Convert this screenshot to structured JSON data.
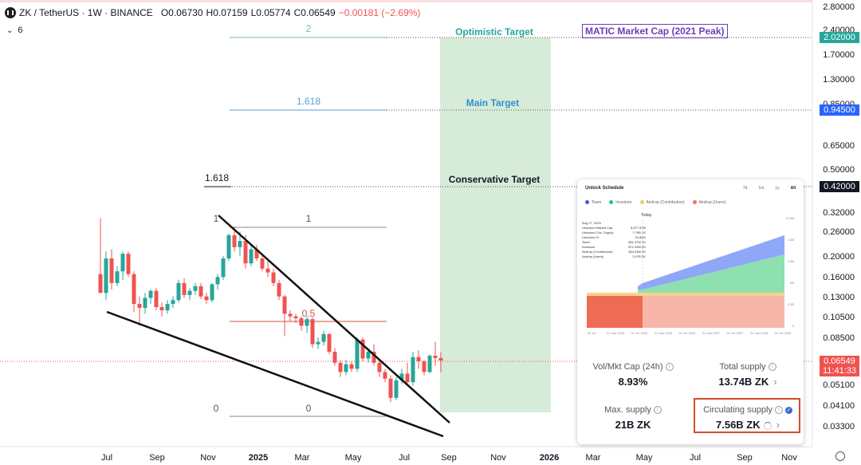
{
  "header": {
    "symbol": "ZK / TetherUS · 1W · BINANCE",
    "open": "O0.06730",
    "high": "H0.07159",
    "low": "L0.05774",
    "close": "C0.06549",
    "change": "−0.00181 (−2.69%)",
    "indicators_count": "6"
  },
  "y_axis": {
    "scale": "log",
    "ticks": [
      "2.80000",
      "2.40000",
      "1.70000",
      "1.30000",
      "0.85000",
      "0.65000",
      "0.50000",
      "0.32000",
      "0.26000",
      "0.20000",
      "0.16000",
      "0.13000",
      "0.10500",
      "0.08500",
      "0.05100",
      "0.04100",
      "0.03300"
    ],
    "price_tags": [
      {
        "label": "2.02000",
        "color": "#26a69a"
      },
      {
        "label": "0.94500",
        "color": "#2962ff"
      },
      {
        "label": "0.42000",
        "color": "#131722"
      },
      {
        "label": "0.06549",
        "color": "#ef5350"
      },
      {
        "label": "11:41:33",
        "color": "#ef5350"
      }
    ]
  },
  "x_axis": {
    "ticks": [
      {
        "label": "Jul",
        "bold": false
      },
      {
        "label": "Sep",
        "bold": false
      },
      {
        "label": "Nov",
        "bold": false
      },
      {
        "label": "2025",
        "bold": true
      },
      {
        "label": "Mar",
        "bold": false
      },
      {
        "label": "May",
        "bold": false
      },
      {
        "label": "Jul",
        "bold": false
      },
      {
        "label": "Sep",
        "bold": false
      },
      {
        "label": "Nov",
        "bold": false
      },
      {
        "label": "2026",
        "bold": true
      },
      {
        "label": "Mar",
        "bold": false
      },
      {
        "label": "May",
        "bold": false
      },
      {
        "label": "Jul",
        "bold": false
      },
      {
        "label": "Sep",
        "bold": false
      },
      {
        "label": "Nov",
        "bold": false
      }
    ]
  },
  "annotations": {
    "optimistic": "Optimistic Target",
    "main": "Main Target",
    "conservative": "Conservative Target",
    "matic": "MATIC Market Cap (2021 Peak)",
    "fib_upper_2": "2",
    "fib_upper_1618": "1.618",
    "fib_cons_1618": "1.618",
    "fib_lower_1_left": "1",
    "fib_lower_1": "1",
    "fib_lower_05": "0.5",
    "fib_lower_0_left": "0",
    "fib_lower_0": "0"
  },
  "colors": {
    "up": "#26a69a",
    "down": "#ef5350",
    "target_zone": "#c8e6c9",
    "optimistic_text": "#26a69a",
    "main_text": "#2f8fd1",
    "matic_text": "#6a3fb5"
  },
  "chart_data": {
    "type": "candlestick",
    "title": "ZK / TetherUS · 1W · BINANCE",
    "ylim": [
      0.03,
      3.0
    ],
    "yscale": "log",
    "series": [
      {
        "date": "2024-06-17",
        "o": 0.165,
        "h": 0.3,
        "l": 0.135,
        "c": 0.135
      },
      {
        "date": "2024-06-24",
        "o": 0.135,
        "h": 0.21,
        "l": 0.125,
        "c": 0.195
      },
      {
        "date": "2024-07-01",
        "o": 0.195,
        "h": 0.215,
        "l": 0.14,
        "c": 0.15
      },
      {
        "date": "2024-07-08",
        "o": 0.15,
        "h": 0.18,
        "l": 0.145,
        "c": 0.17
      },
      {
        "date": "2024-07-15",
        "o": 0.17,
        "h": 0.21,
        "l": 0.155,
        "c": 0.205
      },
      {
        "date": "2024-07-22",
        "o": 0.205,
        "h": 0.21,
        "l": 0.16,
        "c": 0.165
      },
      {
        "date": "2024-07-29",
        "o": 0.165,
        "h": 0.17,
        "l": 0.11,
        "c": 0.12
      },
      {
        "date": "2024-08-05",
        "o": 0.12,
        "h": 0.13,
        "l": 0.095,
        "c": 0.115
      },
      {
        "date": "2024-08-12",
        "o": 0.115,
        "h": 0.135,
        "l": 0.108,
        "c": 0.128
      },
      {
        "date": "2024-08-19",
        "o": 0.128,
        "h": 0.14,
        "l": 0.12,
        "c": 0.138
      },
      {
        "date": "2024-08-26",
        "o": 0.138,
        "h": 0.142,
        "l": 0.112,
        "c": 0.116
      },
      {
        "date": "2024-09-02",
        "o": 0.116,
        "h": 0.122,
        "l": 0.105,
        "c": 0.112
      },
      {
        "date": "2024-09-09",
        "o": 0.112,
        "h": 0.125,
        "l": 0.108,
        "c": 0.12
      },
      {
        "date": "2024-09-16",
        "o": 0.12,
        "h": 0.13,
        "l": 0.115,
        "c": 0.125
      },
      {
        "date": "2024-09-23",
        "o": 0.125,
        "h": 0.155,
        "l": 0.122,
        "c": 0.15
      },
      {
        "date": "2024-09-30",
        "o": 0.15,
        "h": 0.158,
        "l": 0.128,
        "c": 0.132
      },
      {
        "date": "2024-10-07",
        "o": 0.132,
        "h": 0.142,
        "l": 0.125,
        "c": 0.138
      },
      {
        "date": "2024-10-14",
        "o": 0.138,
        "h": 0.15,
        "l": 0.132,
        "c": 0.145
      },
      {
        "date": "2024-10-21",
        "o": 0.145,
        "h": 0.15,
        "l": 0.126,
        "c": 0.13
      },
      {
        "date": "2024-10-28",
        "o": 0.13,
        "h": 0.135,
        "l": 0.12,
        "c": 0.125
      },
      {
        "date": "2024-11-04",
        "o": 0.125,
        "h": 0.15,
        "l": 0.122,
        "c": 0.148
      },
      {
        "date": "2024-11-11",
        "o": 0.148,
        "h": 0.165,
        "l": 0.14,
        "c": 0.16
      },
      {
        "date": "2024-11-18",
        "o": 0.16,
        "h": 0.2,
        "l": 0.155,
        "c": 0.195
      },
      {
        "date": "2024-11-25",
        "o": 0.195,
        "h": 0.255,
        "l": 0.19,
        "c": 0.25
      },
      {
        "date": "2024-12-02",
        "o": 0.25,
        "h": 0.275,
        "l": 0.21,
        "c": 0.22
      },
      {
        "date": "2024-12-09",
        "o": 0.22,
        "h": 0.26,
        "l": 0.2,
        "c": 0.235
      },
      {
        "date": "2024-12-16",
        "o": 0.235,
        "h": 0.25,
        "l": 0.175,
        "c": 0.185
      },
      {
        "date": "2024-12-23",
        "o": 0.185,
        "h": 0.225,
        "l": 0.18,
        "c": 0.215
      },
      {
        "date": "2024-12-30",
        "o": 0.215,
        "h": 0.225,
        "l": 0.19,
        "c": 0.195
      },
      {
        "date": "2025-01-06",
        "o": 0.195,
        "h": 0.2,
        "l": 0.17,
        "c": 0.175
      },
      {
        "date": "2025-01-13",
        "o": 0.175,
        "h": 0.19,
        "l": 0.16,
        "c": 0.168
      },
      {
        "date": "2025-01-20",
        "o": 0.168,
        "h": 0.175,
        "l": 0.145,
        "c": 0.15
      },
      {
        "date": "2025-01-27",
        "o": 0.15,
        "h": 0.155,
        "l": 0.125,
        "c": 0.13
      },
      {
        "date": "2025-02-03",
        "o": 0.13,
        "h": 0.132,
        "l": 0.085,
        "c": 0.108
      },
      {
        "date": "2025-02-10",
        "o": 0.108,
        "h": 0.112,
        "l": 0.1,
        "c": 0.105
      },
      {
        "date": "2025-02-17",
        "o": 0.105,
        "h": 0.108,
        "l": 0.098,
        "c": 0.103
      },
      {
        "date": "2025-02-24",
        "o": 0.103,
        "h": 0.105,
        "l": 0.09,
        "c": 0.095
      },
      {
        "date": "2025-03-03",
        "o": 0.095,
        "h": 0.105,
        "l": 0.088,
        "c": 0.102
      },
      {
        "date": "2025-03-10",
        "o": 0.102,
        "h": 0.104,
        "l": 0.075,
        "c": 0.078
      },
      {
        "date": "2025-03-17",
        "o": 0.078,
        "h": 0.084,
        "l": 0.074,
        "c": 0.08
      },
      {
        "date": "2025-03-24",
        "o": 0.08,
        "h": 0.09,
        "l": 0.077,
        "c": 0.087
      },
      {
        "date": "2025-03-31",
        "o": 0.087,
        "h": 0.088,
        "l": 0.07,
        "c": 0.072
      },
      {
        "date": "2025-04-07",
        "o": 0.072,
        "h": 0.075,
        "l": 0.062,
        "c": 0.064
      },
      {
        "date": "2025-04-14",
        "o": 0.064,
        "h": 0.066,
        "l": 0.055,
        "c": 0.058
      },
      {
        "date": "2025-04-21",
        "o": 0.058,
        "h": 0.066,
        "l": 0.056,
        "c": 0.063
      },
      {
        "date": "2025-04-28",
        "o": 0.063,
        "h": 0.065,
        "l": 0.058,
        "c": 0.06
      },
      {
        "date": "2025-05-05",
        "o": 0.06,
        "h": 0.084,
        "l": 0.058,
        "c": 0.082
      },
      {
        "date": "2025-05-12",
        "o": 0.082,
        "h": 0.084,
        "l": 0.065,
        "c": 0.067
      },
      {
        "date": "2025-05-19",
        "o": 0.067,
        "h": 0.075,
        "l": 0.064,
        "c": 0.072
      },
      {
        "date": "2025-05-26",
        "o": 0.072,
        "h": 0.078,
        "l": 0.062,
        "c": 0.064
      },
      {
        "date": "2025-06-02",
        "o": 0.064,
        "h": 0.066,
        "l": 0.055,
        "c": 0.058
      },
      {
        "date": "2025-06-09",
        "o": 0.058,
        "h": 0.06,
        "l": 0.052,
        "c": 0.054
      },
      {
        "date": "2025-06-16",
        "o": 0.054,
        "h": 0.056,
        "l": 0.042,
        "c": 0.044
      },
      {
        "date": "2025-06-23",
        "o": 0.044,
        "h": 0.055,
        "l": 0.043,
        "c": 0.053
      },
      {
        "date": "2025-06-30",
        "o": 0.053,
        "h": 0.06,
        "l": 0.051,
        "c": 0.057
      },
      {
        "date": "2025-07-07",
        "o": 0.057,
        "h": 0.064,
        "l": 0.05,
        "c": 0.052
      },
      {
        "date": "2025-07-14",
        "o": 0.052,
        "h": 0.072,
        "l": 0.05,
        "c": 0.068
      },
      {
        "date": "2025-07-21",
        "o": 0.068,
        "h": 0.073,
        "l": 0.06,
        "c": 0.065
      },
      {
        "date": "2025-07-28",
        "o": 0.065,
        "h": 0.066,
        "l": 0.056,
        "c": 0.058
      },
      {
        "date": "2025-08-04",
        "o": 0.058,
        "h": 0.07,
        "l": 0.057,
        "c": 0.069
      },
      {
        "date": "2025-08-11",
        "o": 0.069,
        "h": 0.08,
        "l": 0.062,
        "c": 0.0673
      },
      {
        "date": "2025-08-18",
        "o": 0.0673,
        "h": 0.07159,
        "l": 0.05774,
        "c": 0.06549
      }
    ]
  },
  "unlock_card": {
    "title": "Unlock Schedule",
    "tabs": [
      "7d",
      "1m",
      "1y",
      "All"
    ],
    "legend": [
      {
        "label": "Team",
        "color": "#3b5bdb"
      },
      {
        "label": "Investors",
        "color": "#2fbf71"
      },
      {
        "label": "Airdrop (Contributors)",
        "color": "#f4c96a"
      },
      {
        "label": "Airdrop (Users)",
        "color": "#f0715c"
      }
    ],
    "today_label": "Today",
    "mini_rows": [
      {
        "k": "Aug 27, 2025",
        "v": ""
      },
      {
        "k": "Unlocked Market Cap",
        "v": "$ 577.87M"
      },
      {
        "k": "Unlocked Circ. Supply",
        "v": "7.79B ZK"
      },
      {
        "k": "Unlocked %",
        "v": "34.88%"
      },
      {
        "k": "Team",
        "v": "4B1.97M ZK"
      },
      {
        "k": "Investors",
        "v": "872.39M ZK"
      },
      {
        "k": "Airdrop (Contributors)",
        "v": "484.33M ZK"
      },
      {
        "k": "Airdrop (Users)",
        "v": "3.47B ZK"
      }
    ],
    "y_ticks": [
      "12.5B",
      "10B",
      "7.5B",
      "5B",
      "2.5B",
      "0"
    ],
    "x_ticks": [
      "01 Jul",
      "01 Jan 2025",
      "01 Jul 2025",
      "01 Jan 2026",
      "01 Jul 2026",
      "01 Jan 2027",
      "01 Jul 2027",
      "01 Jan 2028",
      "01 Jul 2028"
    ],
    "vol_mkt_label": "Vol/Mkt Cap (24h)",
    "vol_mkt_value": "8.93%",
    "total_supply_label": "Total supply",
    "total_supply_value": "13.74B ZK",
    "max_supply_label": "Max. supply",
    "max_supply_value": "21B ZK",
    "circ_supply_label": "Circulating supply",
    "circ_supply_value": "7.56B ZK"
  }
}
